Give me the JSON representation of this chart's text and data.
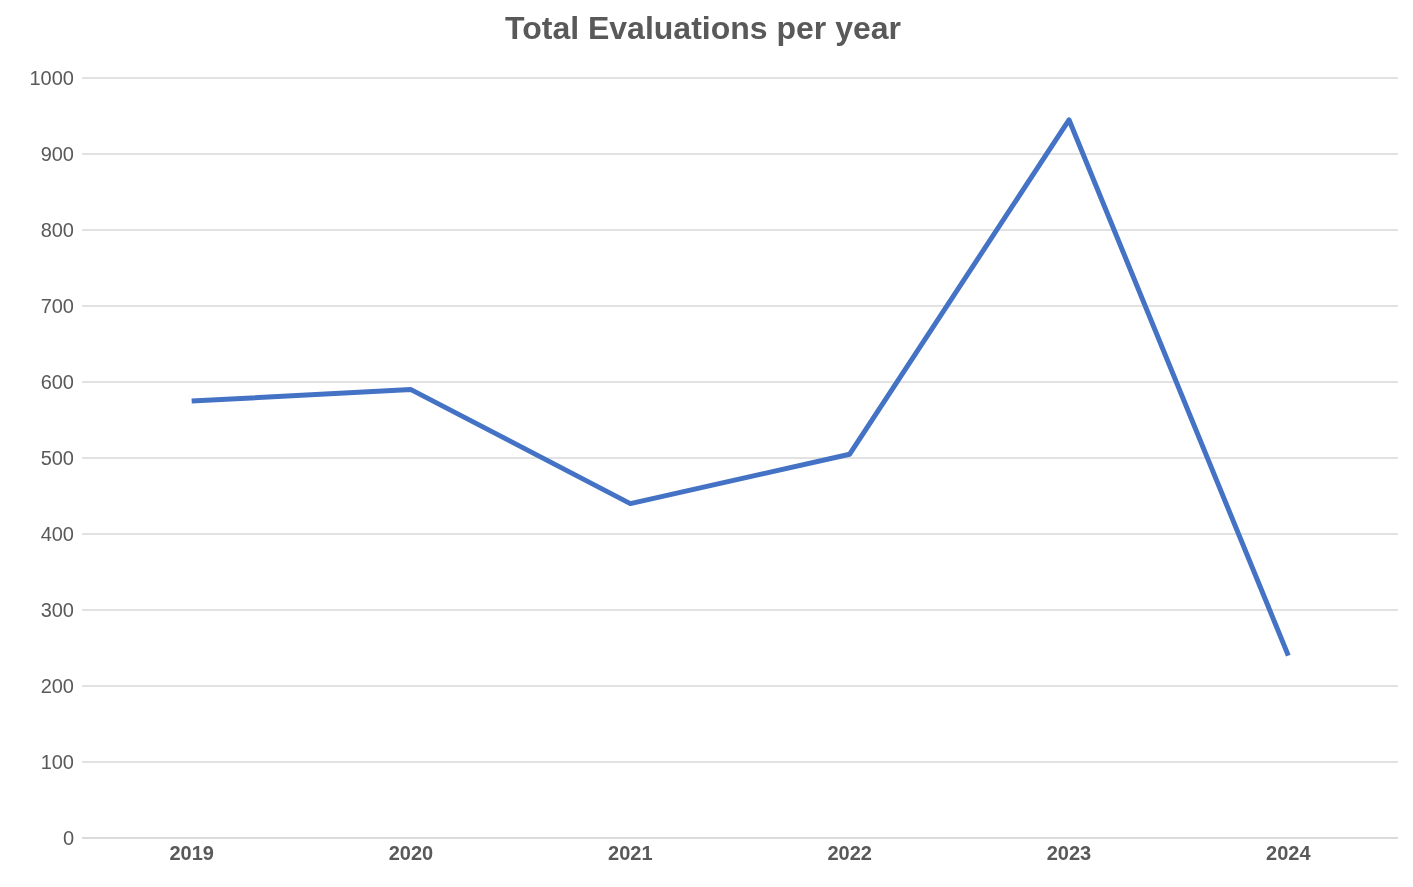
{
  "chart_data": {
    "type": "line",
    "title": "Total Evaluations per year",
    "categories": [
      "2019",
      "2020",
      "2021",
      "2022",
      "2023",
      "2024"
    ],
    "series": [
      {
        "color": "#4472c4",
        "values": [
          575,
          590,
          440,
          505,
          945,
          240
        ]
      }
    ],
    "ylim": [
      0,
      1000
    ],
    "yticks": [
      0,
      100,
      200,
      300,
      400,
      500,
      600,
      700,
      800,
      900,
      1000
    ],
    "grid": "y",
    "legend": false,
    "marker": "none",
    "line_style": "solid"
  }
}
